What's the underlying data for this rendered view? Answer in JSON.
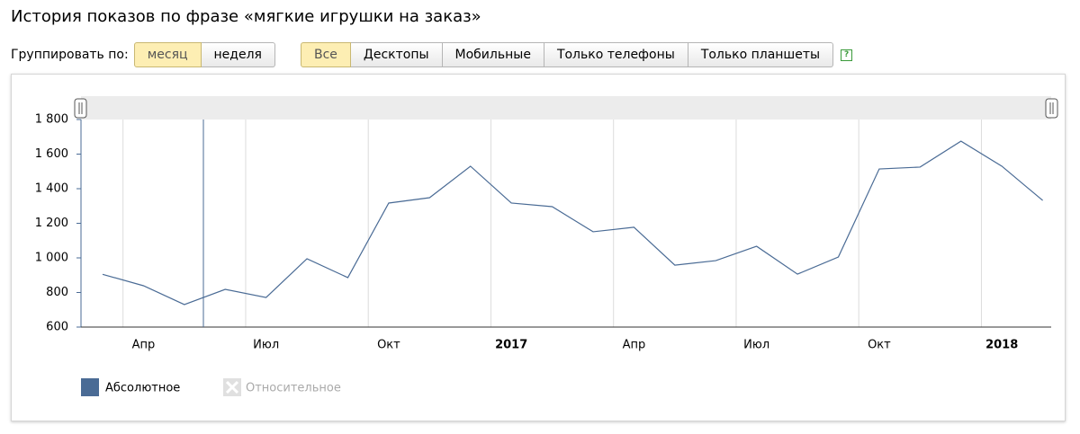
{
  "header": {
    "title": "История показов по фразе «мягкие игрушки на заказ»"
  },
  "controls": {
    "group_label": "Группировать по:",
    "group_buttons": [
      "месяц",
      "неделя"
    ],
    "device_buttons": [
      "Все",
      "Десктопы",
      "Мобильные",
      "Только телефоны",
      "Только планшеты"
    ],
    "help": "?"
  },
  "legend_inactive": "Относительное",
  "chart_data": {
    "type": "line",
    "categories": [
      null,
      "Апр",
      null,
      null,
      "Июл",
      null,
      null,
      "Окт",
      null,
      null,
      "2017",
      null,
      null,
      "Апр",
      null,
      null,
      "Июл",
      null,
      null,
      "Окт",
      null,
      null,
      "2018",
      null
    ],
    "series": [
      {
        "name": "Абсолютное",
        "color": "#4a6b95",
        "values": [
          905,
          839,
          730,
          818,
          771,
          995,
          886,
          1317,
          1348,
          1530,
          1317,
          1296,
          1151,
          1177,
          958,
          984,
          1067,
          906,
          1005,
          1514,
          1525,
          1675,
          1530,
          1332
        ]
      }
    ],
    "ylim": [
      600,
      1800
    ],
    "yticks": [
      600,
      800,
      {
        "value": 1000,
        "label": "1 000"
      },
      {
        "value": 1200,
        "label": "1 200"
      },
      {
        "value": 1400,
        "label": "1 400"
      },
      {
        "value": 1600,
        "label": "1 600"
      },
      {
        "value": 1800,
        "label": "1 800"
      }
    ],
    "grid": true
  }
}
